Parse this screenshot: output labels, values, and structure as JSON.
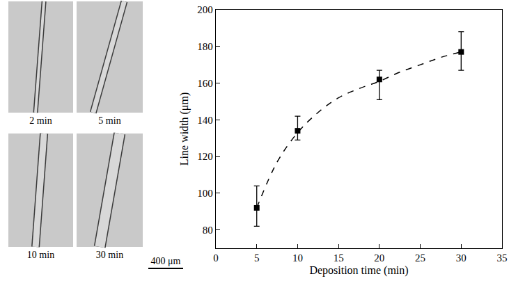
{
  "chart_data": {
    "type": "scatter",
    "x_label": "Deposition time (min)",
    "y_label": "Line width (μm)",
    "xlim": [
      0,
      35
    ],
    "xticks": [
      0,
      5,
      10,
      15,
      20,
      25,
      30,
      35
    ],
    "ylim": [
      70,
      200
    ],
    "yticks": [
      80,
      100,
      120,
      140,
      160,
      180,
      200
    ],
    "grid": false,
    "series": [
      {
        "x": [
          5,
          10,
          20,
          30
        ],
        "values": [
          92,
          134,
          162,
          177
        ],
        "error_plus": [
          12,
          8,
          5,
          11
        ],
        "error_minus": [
          10,
          5,
          11,
          10
        ],
        "color": "#000000",
        "marker": "square",
        "line_style": "none"
      },
      {
        "x": [
          5,
          7.5,
          10,
          12.5,
          15,
          17.5,
          20,
          22.5,
          25,
          27.5,
          30
        ],
        "values": [
          92,
          117,
          133,
          144,
          152,
          157,
          161,
          166,
          170,
          174,
          177
        ],
        "color": "#000000",
        "line_style": "dash"
      }
    ]
  },
  "micrographs": {
    "labels": [
      "2 min",
      "5 min",
      "10 min",
      "30 min"
    ],
    "scale_bar": "400 μm"
  }
}
